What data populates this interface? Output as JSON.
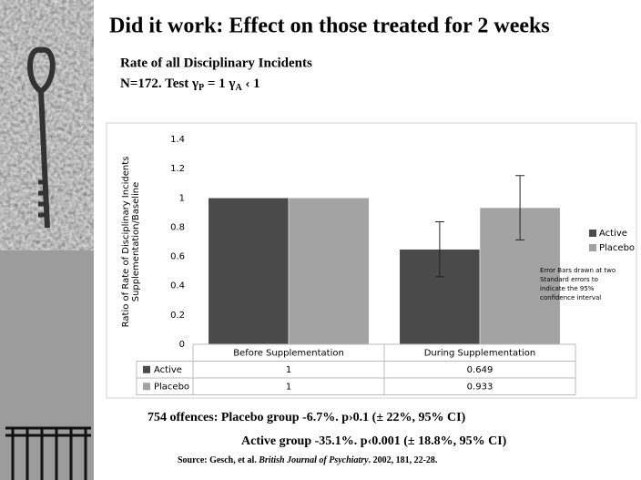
{
  "title": "Did it work: Effect on those treated for 2 weeks",
  "subtitle": "Rate of all Disciplinary Incidents",
  "test_line": [
    "N=172.  Test γ",
    "P",
    " = 1  γ",
    "A",
    " ‹ 1"
  ],
  "chart_data": {
    "type": "bar",
    "y_label": [
      "Ratio of Rate of Disciplinary Incidents",
      "Supplementation/Baseline"
    ],
    "categories": [
      "Before Supplementation",
      "During Supplementation"
    ],
    "series": [
      {
        "name": "Active",
        "color": "#4a4a4a",
        "values": [
          1,
          0.649
        ],
        "errors": [
          null,
          0.188
        ]
      },
      {
        "name": "Placebo",
        "color": "#a3a3a3",
        "values": [
          1,
          0.933
        ],
        "errors": [
          null,
          0.22
        ]
      }
    ],
    "ylim": [
      0,
      1.4
    ],
    "yticks": [
      0,
      0.2,
      0.4,
      0.6,
      0.8,
      1,
      1.2,
      1.4
    ],
    "legend": "right",
    "note": [
      "Error Bars drawn at two",
      "Standard errors to",
      "indicate the 95%",
      "confidence interval"
    ]
  },
  "footer": {
    "placebo_line": "754 offences:  Placebo group -6.7%.   p›0.1 (± 22%, 95% CI)",
    "active_line": "Active group -35.1%.    p‹0.001 (± 18.8%, 95% CI)",
    "source": [
      "Source: Gesch, et al. ",
      "British Journal of Psychiatry",
      ". 2002, 181, 22-28."
    ]
  }
}
